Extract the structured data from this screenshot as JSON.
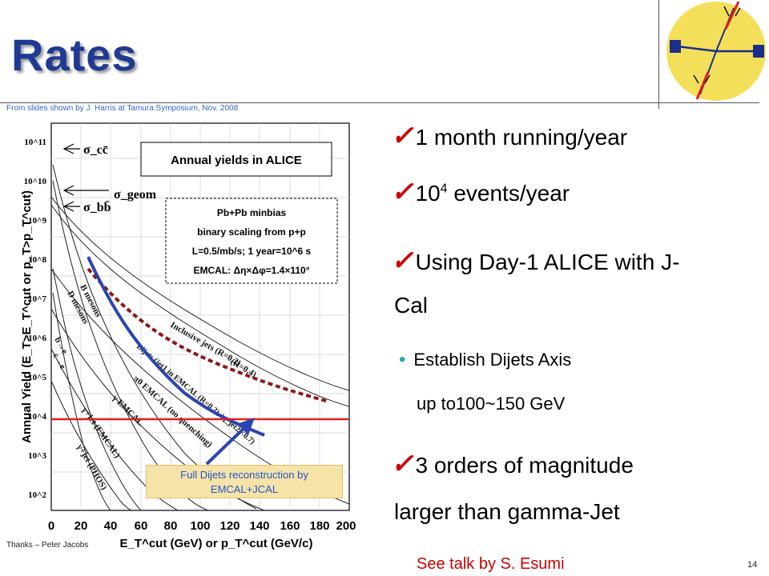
{
  "slide": {
    "title": "Rates",
    "source_note": "From slides shown by J. Harris at Tamura Symposium, Nov. 2008",
    "thanks": "Thanks – Peter Jacobs",
    "page_number": "14",
    "bottom_note": "See talk by S. Esumi"
  },
  "bullets": [
    {
      "text": "1 month running/year"
    },
    {
      "base": "10",
      "sup": "4",
      "rest": " events/year"
    },
    {
      "line1": "Using Day-1 ALICE with J-",
      "line2": "Cal"
    },
    {
      "sub1": "Establish Dijets Axis",
      "sub2": "up to100~150 GeV"
    },
    {
      "line1": "3 orders of magnitude",
      "line2": "larger than gamma-Jet"
    }
  ],
  "callout": {
    "line1": "Full Dijets reconstruction by",
    "line2": "EMCAL+JCAL"
  },
  "plot": {
    "ylabel": "Annual Yield (E_T>E_T^cut or p_T>p_T^cut)",
    "xlabel": "E_T^cut (GeV) or p_T^cut (GeV/c)",
    "legend_title": "Annual yields in ALICE",
    "legend_lines": [
      "Pb+Pb minbias",
      "binary scaling from p+p",
      "L=0.5/mb/s; 1 year=10^6 s",
      "EMCAL: Δη×Δφ=1.4×110°"
    ],
    "sigma_labels": [
      "σ_cc̄",
      "σ_geom",
      "σ_bb̄"
    ],
    "x_ticks": [
      "0",
      "20",
      "40",
      "60",
      "80",
      "100",
      "120",
      "140",
      "160",
      "180",
      "200"
    ],
    "y_ticks": [
      "10^2",
      "10^3",
      "10^4",
      "10^5",
      "10^6",
      "10^7",
      "10^8",
      "10^9",
      "10^10",
      "10^11"
    ],
    "curve_labels": [
      "B mesons",
      "D mesons",
      "b→e",
      "c→e",
      "Inclusive jets (R=0.2)",
      "(R=0.4)",
      "Dijets (jet1 in EMCAL (R=0.2), |η_jet2|<0.7)",
      "π0 EMCAL (no quenching)",
      "γ EMCAL",
      "γ+jet (EMCAL)",
      "γ+jet (PHOS)"
    ]
  },
  "colors": {
    "title": "#1f3a93",
    "check": "#cc0000",
    "bullet_dot": "#2aa6b8",
    "accent_line": "#e02020",
    "curve_blue": "#2b45b0"
  }
}
